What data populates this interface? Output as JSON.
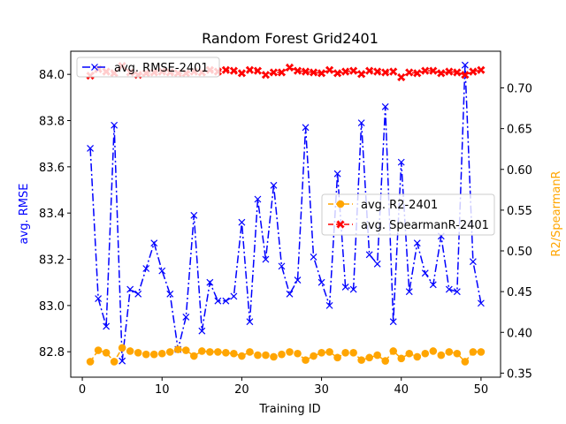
{
  "chart_data": {
    "type": "line",
    "title": "Random Forest Grid2401",
    "xlabel": "Training ID",
    "ylabel_left": "avg. RMSE",
    "ylabel_right": "R2/SpearmanR",
    "x": [
      1,
      2,
      3,
      4,
      5,
      6,
      7,
      8,
      9,
      10,
      11,
      12,
      13,
      14,
      15,
      16,
      17,
      18,
      19,
      20,
      21,
      22,
      23,
      24,
      25,
      26,
      27,
      28,
      29,
      30,
      31,
      32,
      33,
      34,
      35,
      36,
      37,
      38,
      39,
      40,
      41,
      42,
      43,
      44,
      45,
      46,
      47,
      48,
      49,
      50
    ],
    "xlim": [
      -1.45,
      52.45
    ],
    "xticks": [
      0,
      10,
      20,
      30,
      40,
      50
    ],
    "ylim_left": [
      82.69,
      84.1
    ],
    "yticks_left": [
      "82.8",
      "83.0",
      "83.2",
      "83.4",
      "83.6",
      "83.8",
      "84.0"
    ],
    "ylim_right": [
      0.345,
      0.745
    ],
    "yticks_right": [
      "0.35",
      "0.40",
      "0.45",
      "0.50",
      "0.55",
      "0.60",
      "0.65",
      "0.70"
    ],
    "series": [
      {
        "name": "avg. RMSE-2401",
        "axis": "left",
        "color": "#0000ff",
        "values": [
          83.68,
          83.03,
          82.91,
          83.78,
          82.76,
          83.07,
          83.05,
          83.16,
          83.27,
          83.15,
          83.05,
          82.81,
          82.95,
          83.39,
          82.89,
          83.1,
          83.02,
          83.02,
          83.04,
          83.36,
          82.93,
          83.46,
          83.2,
          83.52,
          83.17,
          83.05,
          83.11,
          83.77,
          83.21,
          83.1,
          83.0,
          83.57,
          83.08,
          83.07,
          83.79,
          83.22,
          83.18,
          83.86,
          82.93,
          83.62,
          83.06,
          83.27,
          83.14,
          83.09,
          83.3,
          83.07,
          83.06,
          84.04,
          83.19,
          83.01
        ]
      },
      {
        "name": "avg. R2-2401",
        "axis": "right",
        "color": "#ffa500",
        "values": [
          0.364,
          0.378,
          0.375,
          0.364,
          0.381,
          0.377,
          0.375,
          0.373,
          0.373,
          0.374,
          0.376,
          0.379,
          0.378,
          0.371,
          0.377,
          0.376,
          0.376,
          0.375,
          0.374,
          0.371,
          0.376,
          0.372,
          0.372,
          0.37,
          0.373,
          0.376,
          0.374,
          0.366,
          0.371,
          0.375,
          0.376,
          0.369,
          0.375,
          0.375,
          0.366,
          0.369,
          0.372,
          0.365,
          0.377,
          0.368,
          0.374,
          0.37,
          0.374,
          0.377,
          0.372,
          0.376,
          0.374,
          0.364,
          0.376,
          0.376
        ]
      },
      {
        "name": "avg. SpearmanR-2401",
        "axis": "right",
        "color": "#ff0000",
        "values": [
          0.715,
          0.723,
          0.72,
          0.718,
          0.727,
          0.719,
          0.716,
          0.718,
          0.719,
          0.72,
          0.719,
          0.718,
          0.718,
          0.72,
          0.719,
          0.722,
          0.72,
          0.722,
          0.721,
          0.718,
          0.722,
          0.721,
          0.716,
          0.719,
          0.719,
          0.725,
          0.721,
          0.72,
          0.719,
          0.718,
          0.722,
          0.718,
          0.72,
          0.721,
          0.717,
          0.721,
          0.72,
          0.719,
          0.72,
          0.713,
          0.719,
          0.718,
          0.721,
          0.721,
          0.718,
          0.72,
          0.719,
          0.716,
          0.72,
          0.722
        ]
      }
    ],
    "legend_upper": {
      "placement": "top-left",
      "entries": [
        "avg. RMSE-2401"
      ]
    },
    "legend_lower": {
      "placement": "center-right",
      "entries": [
        "avg. R2-2401",
        "avg. SpearmanR-2401"
      ]
    },
    "grid": false
  }
}
